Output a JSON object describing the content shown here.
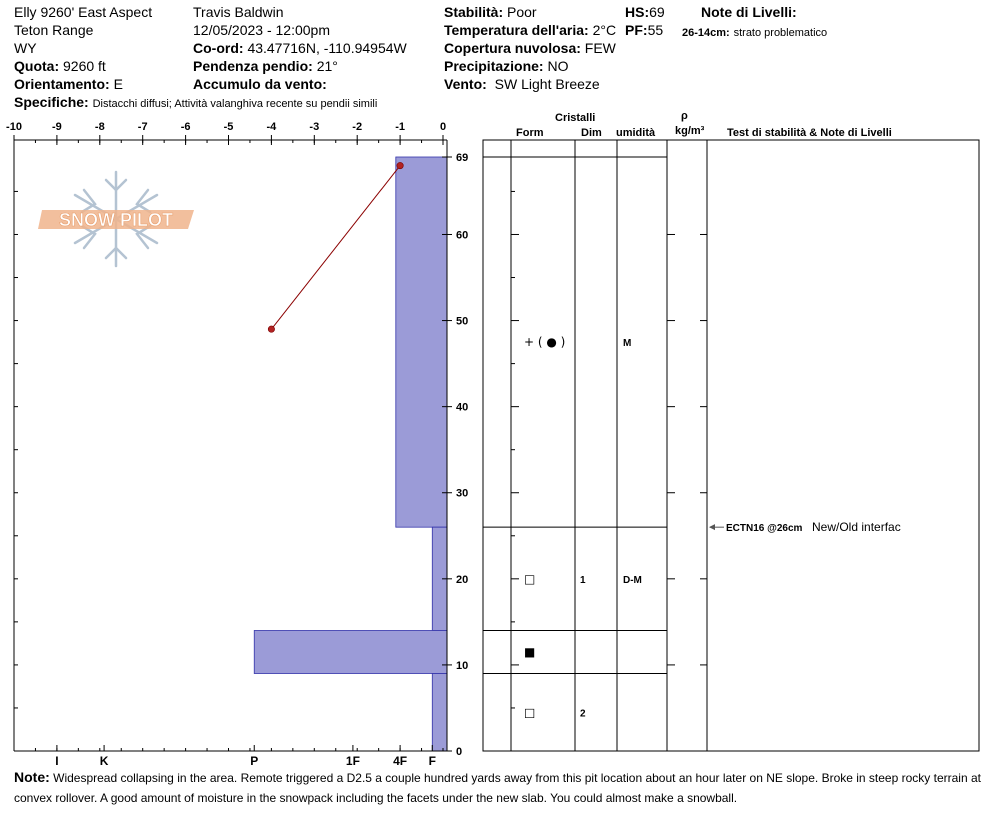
{
  "header": {
    "site": "Elly 9260' East Aspect",
    "range": "Teton Range",
    "state": "WY",
    "elevation_label": "Quota:",
    "elevation": "9260 ft",
    "aspect_label": "Orientamento:",
    "aspect": "E",
    "observer": "Travis Baldwin",
    "datetime": "12/05/2023 - 12:00pm",
    "coord_label": "Co-ord:",
    "coord": "43.47716N, -110.94954W",
    "slope_label": "Pendenza pendio:",
    "slope": "21°",
    "wind_loading_label": "Accumulo da vento:",
    "wind_loading": "",
    "stability_label": "Stabilità:",
    "stability": "Poor",
    "air_temp_label": "Temperatura dell'aria:",
    "air_temp": "2°C",
    "cloud_label": "Copertura nuvolosa:",
    "cloud": "FEW",
    "precip_label": "Precipitazione:",
    "precip": "NO",
    "wind_label": "Vento:",
    "wind": "SW Light Breeze",
    "hs_label": "HS:",
    "hs": "69",
    "pf_label": "PF:",
    "pf": "55",
    "layer_notes_label": "Note di Livelli:",
    "layer_note_depth": "26-14cm:",
    "layer_note_text": "strato problematico",
    "spec_label": "Specifiche:",
    "spec_text": "Distacchi diffusi; Attività valanghiva recente su pendii simili"
  },
  "logo": {
    "text": "SNOW PILOT"
  },
  "columns": {
    "crystals": "Cristalli",
    "form": "Form",
    "size": "Dim",
    "moisture": "umidità",
    "rho": "ρ",
    "density_unit": "kg/m³",
    "tests": "Test di stabilità & Note di Livelli"
  },
  "chart_data": {
    "type": "bar",
    "temp_axis": {
      "ticks": [
        -10,
        -9,
        -8,
        -7,
        -6,
        -5,
        -4,
        -3,
        -2,
        -1,
        0
      ],
      "labels": [
        "-10",
        "-9",
        "-8",
        "-7",
        "-6",
        "-5",
        "-4",
        "-3",
        "-2",
        "-1",
        "0"
      ]
    },
    "depth_axis": {
      "range": [
        0,
        69
      ],
      "ticks": [
        0,
        10,
        20,
        30,
        40,
        50,
        60,
        69
      ],
      "labels": [
        "0",
        "10",
        "20",
        "30",
        "40",
        "50",
        "60",
        "69"
      ]
    },
    "hardness_axis": {
      "labels": [
        "I",
        "K",
        "P",
        "1F",
        "4F",
        "F"
      ],
      "positions": [
        -9,
        -7.9,
        -4.4,
        -2.1,
        -1.0,
        -0.25
      ]
    },
    "layers": [
      {
        "top": 69,
        "bottom": 26,
        "hardness_x": -1.1,
        "form": "+ ( ● )",
        "size": "",
        "moisture": "M"
      },
      {
        "top": 26,
        "bottom": 14,
        "hardness_x": -0.25,
        "form": "□",
        "size": "1",
        "moisture": "D-M"
      },
      {
        "top": 14,
        "bottom": 9,
        "hardness_x": -4.4,
        "form": "■",
        "size": "",
        "moisture": ""
      },
      {
        "top": 9,
        "bottom": 0,
        "hardness_x": -0.25,
        "form": "□",
        "size": "2",
        "moisture": ""
      }
    ],
    "temperature_profile": [
      {
        "depth": 68,
        "temp": -1.0
      },
      {
        "depth": 49,
        "temp": -4.0
      }
    ],
    "stability_tests": [
      {
        "depth": 26,
        "code": "ECTN16 @26cm",
        "note": "New/Old interfac"
      }
    ]
  },
  "note": {
    "label": "Note:",
    "text": "Widespread collapsing in the area. Remote triggered a D2.5 a couple hundred yards away from this pit location about an hour later on NE slope. Broke in steep rocky terrain at convex rollover. A good amount of moisture in the snowpack including the facets under the new slab. You could almost make a snowball."
  },
  "colors": {
    "bar_fill": "#9b9bd7",
    "temp_line": "#8b0000",
    "temp_dot": "#b22222",
    "logo": "#f0b48c",
    "flake": "#b4c3d2"
  }
}
